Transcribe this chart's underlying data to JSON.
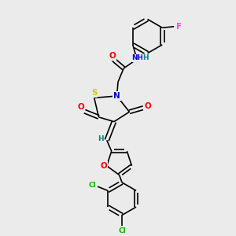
{
  "bg_color": "#ebebeb",
  "bond_color": "#000000",
  "atom_colors": {
    "O": "#ff0000",
    "N": "#0000cc",
    "S": "#cccc00",
    "F": "#ff44ff",
    "Cl": "#00bb00",
    "H": "#008888",
    "C": "#000000"
  },
  "font_size": 6.5,
  "line_width": 1.2
}
